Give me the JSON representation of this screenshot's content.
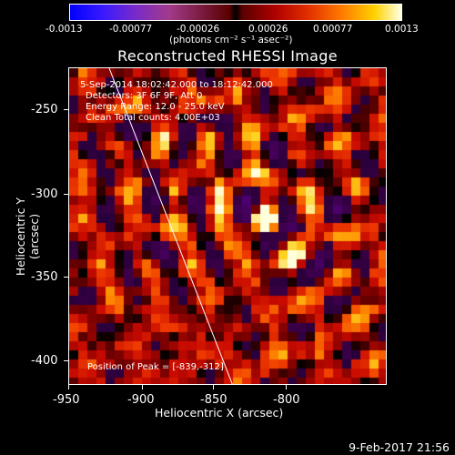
{
  "colorbar": {
    "ticks": [
      "-0.0013",
      "-0.00077",
      "-0.00026",
      "0.00026",
      "0.00077",
      "0.0013"
    ],
    "units": "(photons cm⁻² s⁻¹ asec⁻²)"
  },
  "title": "Reconstructed RHESSI Image",
  "info": {
    "time_range": "5-Sep-2014 18:02:42.000 to 18:12:42.000",
    "detectors": "Detectors: 3F 6F 9F, Att 0",
    "energy": "Energy Range: 12.0 - 25.0 keV",
    "clean": "Clean     Total counts: 4.00E+03",
    "peak": "Position of Peak = [-839,-312]"
  },
  "axes": {
    "xlabel": "Heliocentric X (arcsec)",
    "ylabel": "Heliocentric Y (arcsec)",
    "xticks": [
      "-950",
      "-900",
      "-850",
      "-800"
    ],
    "yticks": [
      "-250",
      "-300",
      "-350",
      "-400"
    ],
    "xlim": [
      -950,
      -840
    ],
    "ylim": [
      -420,
      -230
    ]
  },
  "footer_date": "9-Feb-2017 21:56",
  "colors": {
    "background": "#000000",
    "peak": "#ffffe8",
    "limb_line": "#ffffff"
  }
}
